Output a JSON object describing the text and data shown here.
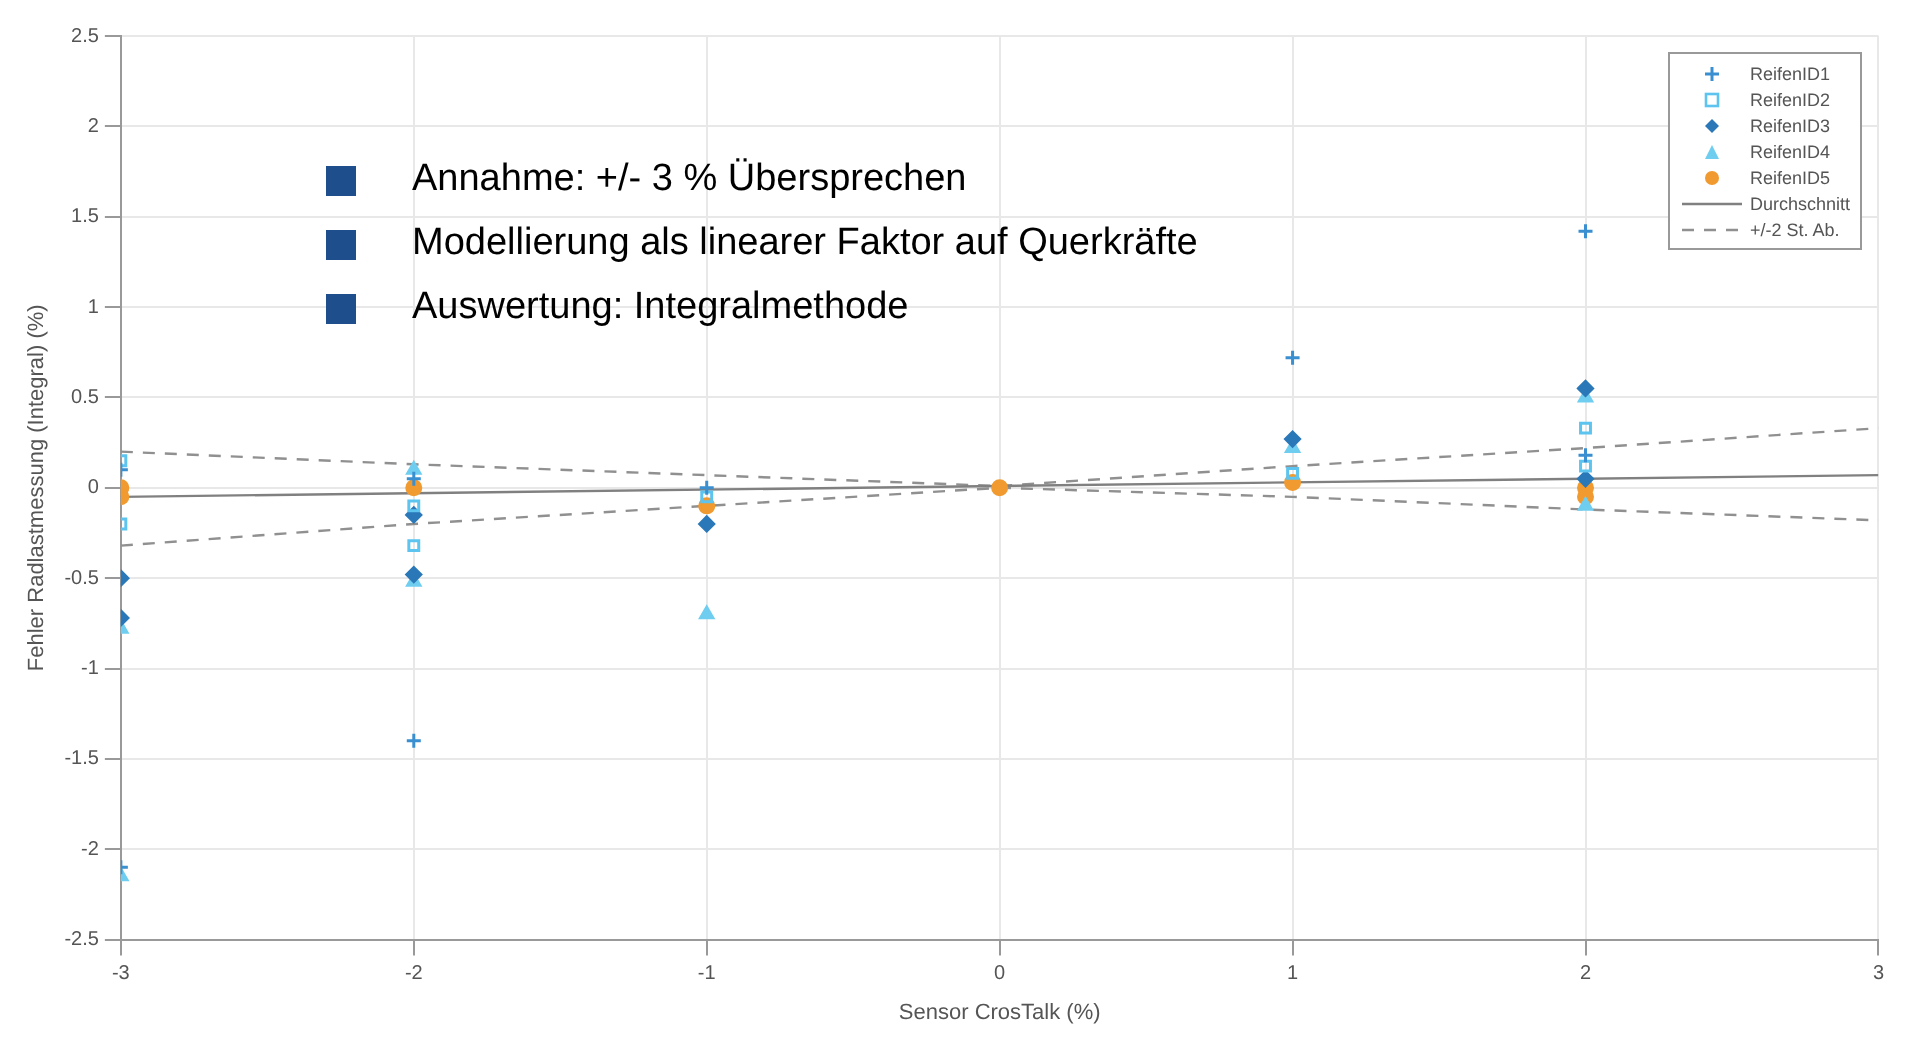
{
  "chart_data": {
    "type": "scatter",
    "xlabel": "Sensor CrosTalk (%)",
    "ylabel": "Fehler Radlastmessung (Integral) (%)",
    "annotations": [
      "Annahme: +/- 3 % Übersprechen",
      "Modellierung als linearer Faktor auf Querkräfte",
      "Auswertung: Integralmethode"
    ],
    "xlim": [
      -3,
      3
    ],
    "xticks": [
      -3,
      -2,
      -1,
      0,
      1,
      2,
      3
    ],
    "ylim": [
      -2.5,
      2.5
    ],
    "yticks": [
      -2.5,
      -2,
      -1.5,
      -1,
      -0.5,
      0,
      0.5,
      1,
      1.5,
      2,
      2.5
    ],
    "grid": true,
    "legend": "top right",
    "series": [
      {
        "name": "ReifenID1",
        "marker": "cross",
        "color": "#3a8fd0",
        "x": [
          -3,
          -3,
          -2,
          -2,
          -1,
          1,
          2,
          2
        ],
        "values": [
          0.1,
          -2.1,
          0.05,
          -1.4,
          0,
          0.72,
          1.42,
          0.18
        ]
      },
      {
        "name": "ReifenID2",
        "marker": "square",
        "color": "#5cc4ef",
        "x": [
          -3,
          -3,
          -2,
          -2,
          -1,
          1,
          2,
          2
        ],
        "values": [
          0.15,
          -0.2,
          -0.1,
          -0.32,
          -0.05,
          0.08,
          0.33,
          0.12
        ]
      },
      {
        "name": "ReifenID3",
        "marker": "diamond",
        "color": "#2a78b8",
        "x": [
          -3,
          -3,
          -2,
          -2,
          -1,
          1,
          2,
          2
        ],
        "values": [
          -0.5,
          -0.72,
          -0.48,
          -0.15,
          -0.2,
          0.27,
          0.55,
          0.05
        ]
      },
      {
        "name": "ReifenID4",
        "marker": "triangle",
        "color": "#6fcdf0",
        "x": [
          -3,
          -3,
          -2,
          -2,
          -1,
          1,
          2,
          2
        ],
        "values": [
          -0.78,
          -2.15,
          -0.52,
          0.1,
          -0.7,
          0.22,
          0.5,
          -0.1
        ]
      },
      {
        "name": "ReifenID5",
        "marker": "circle",
        "color": "#f09a30",
        "x": [
          -3,
          -3,
          -2,
          -1,
          0,
          1,
          2,
          2
        ],
        "values": [
          0,
          -0.05,
          0,
          -0.1,
          0,
          0.03,
          0,
          -0.05
        ]
      },
      {
        "name": "Durchschnitt",
        "type": "line",
        "marker": "none",
        "line_style": "solid",
        "color": "#808080",
        "x": [
          -3,
          3
        ],
        "values": [
          -0.05,
          0.07
        ]
      },
      {
        "name": "+/-2 St. Ab.",
        "type": "line",
        "marker": "none",
        "line_style": "dashed",
        "color": "#909090",
        "x": [
          -3,
          -2,
          -1,
          0,
          1,
          2,
          3
        ],
        "values": [
          0.2,
          0.13,
          0.07,
          0.01,
          0.12,
          0.22,
          0.33
        ]
      },
      {
        "type": "line",
        "marker": "none",
        "line_style": "dashed",
        "color": "#909090",
        "x": [
          -3,
          -2,
          -1,
          0,
          1,
          2,
          3
        ],
        "values": [
          -0.32,
          -0.2,
          -0.1,
          0,
          -0.05,
          -0.12,
          -0.18
        ]
      }
    ]
  }
}
